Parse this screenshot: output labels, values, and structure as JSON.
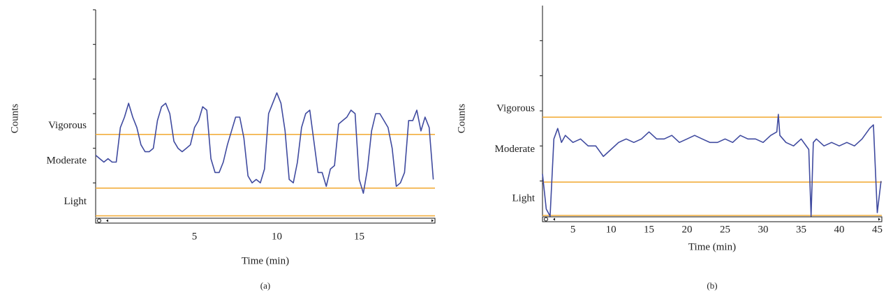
{
  "chart_data": [
    {
      "type": "line",
      "caption": "(a)",
      "xlabel": "Time (min)",
      "ylabel": "Counts",
      "color": "#3f4a9f",
      "threshold_color": "#f2ae3d",
      "xlim": [
        -1,
        19.6
      ],
      "xticks": [
        5,
        10,
        15
      ],
      "ylim": [
        0,
        6
      ],
      "yticks": [
        1,
        2,
        3,
        4,
        5,
        6
      ],
      "thresholds": [
        {
          "label": "Vigorous",
          "value": 2.4
        },
        {
          "label": "Moderate",
          "value": 0.85
        },
        {
          "label": "Light",
          "value": 0.05
        }
      ],
      "x": [
        -1,
        -0.75,
        -0.5,
        -0.25,
        0,
        0.25,
        0.5,
        0.75,
        1,
        1.25,
        1.5,
        1.75,
        2,
        2.25,
        2.5,
        2.75,
        3,
        3.25,
        3.5,
        3.75,
        4,
        4.25,
        4.5,
        4.75,
        5,
        5.25,
        5.5,
        5.75,
        6,
        6.25,
        6.5,
        6.75,
        7,
        7.25,
        7.5,
        7.75,
        8,
        8.25,
        8.5,
        8.75,
        9,
        9.25,
        9.5,
        9.75,
        10,
        10.25,
        10.5,
        10.75,
        11,
        11.25,
        11.5,
        11.75,
        12,
        12.25,
        12.5,
        12.75,
        13,
        13.25,
        13.5,
        13.75,
        14,
        14.25,
        14.5,
        14.75,
        15,
        15.25,
        15.5,
        15.75,
        16,
        16.25,
        16.5,
        16.75,
        17,
        17.25,
        17.5,
        17.75,
        18,
        18.25,
        18.5,
        18.75,
        19,
        19.25,
        19.5
      ],
      "values": [
        1.8,
        1.7,
        1.6,
        1.7,
        1.6,
        1.6,
        2.6,
        2.9,
        3.3,
        2.9,
        2.6,
        2.1,
        1.9,
        1.9,
        2.0,
        2.8,
        3.2,
        3.3,
        3.0,
        2.2,
        2.0,
        1.9,
        2.0,
        2.1,
        2.6,
        2.8,
        3.2,
        3.1,
        1.7,
        1.3,
        1.3,
        1.6,
        2.1,
        2.5,
        2.9,
        2.9,
        2.3,
        1.2,
        1.0,
        1.1,
        1.0,
        1.4,
        3.0,
        3.3,
        3.6,
        3.3,
        2.5,
        1.1,
        1.0,
        1.6,
        2.6,
        3.0,
        3.1,
        2.2,
        1.3,
        1.3,
        0.9,
        1.4,
        1.5,
        2.7,
        2.8,
        2.9,
        3.1,
        3.0,
        1.1,
        0.7,
        1.4,
        2.5,
        3.0,
        3.0,
        2.8,
        2.6,
        2.0,
        0.9,
        1.0,
        1.3,
        2.8,
        2.8,
        3.1,
        2.5,
        2.9,
        2.6,
        1.1
      ]
    },
    {
      "type": "line",
      "caption": "(b)",
      "xlabel": "Time (min)",
      "ylabel": "Counts",
      "color": "#3f4a9f",
      "threshold_color": "#f2ae3d",
      "xlim": [
        1,
        45.6
      ],
      "xticks": [
        5,
        10,
        15,
        20,
        25,
        30,
        35,
        40,
        45
      ],
      "ylim": [
        0,
        6
      ],
      "yticks": [
        1,
        2,
        3,
        4,
        5
      ],
      "thresholds": [
        {
          "label": "Vigorous",
          "value": 2.82
        },
        {
          "label": "Moderate",
          "value": 0.97
        },
        {
          "label": "Light",
          "value": 0.02
        }
      ],
      "x": [
        1,
        1.5,
        2,
        2.5,
        3,
        3.5,
        4,
        5,
        6,
        7,
        8,
        9,
        10,
        11,
        12,
        13,
        14,
        15,
        16,
        17,
        18,
        19,
        20,
        21,
        22,
        23,
        24,
        25,
        26,
        27,
        28,
        29,
        30,
        31,
        31.8,
        32,
        32.2,
        33,
        34,
        35,
        36,
        36.3,
        36.6,
        37,
        38,
        39,
        40,
        41,
        42,
        43,
        44,
        44.5,
        45,
        45.5
      ],
      "values": [
        1.2,
        0.2,
        0.0,
        2.2,
        2.5,
        2.1,
        2.3,
        2.1,
        2.2,
        2.0,
        2.0,
        1.7,
        1.9,
        2.1,
        2.2,
        2.1,
        2.2,
        2.4,
        2.2,
        2.2,
        2.3,
        2.1,
        2.2,
        2.3,
        2.2,
        2.1,
        2.1,
        2.2,
        2.1,
        2.3,
        2.2,
        2.2,
        2.1,
        2.3,
        2.4,
        2.9,
        2.3,
        2.1,
        2.0,
        2.2,
        1.9,
        0.0,
        2.1,
        2.2,
        2.0,
        2.1,
        2.0,
        2.1,
        2.0,
        2.2,
        2.5,
        2.6,
        0.1,
        1.0
      ]
    }
  ]
}
